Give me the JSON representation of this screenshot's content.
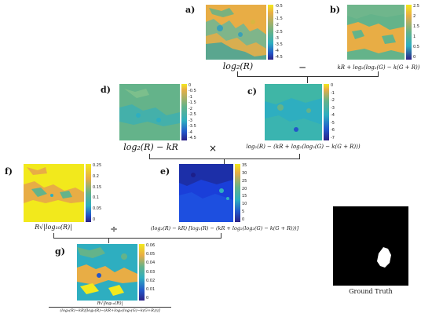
{
  "panels": {
    "a": {
      "letter": "a)",
      "expr": "log₂(R)",
      "ticks": [
        "-0.5",
        "-1",
        "-1.5",
        "-2",
        "-2.5",
        "-3",
        "-3.5",
        "-4",
        "-4.5"
      ]
    },
    "b": {
      "letter": "b)",
      "expr": "kR + log₂(log₂(G) − k(G + R))",
      "ticks": [
        "2.5",
        "2",
        "1.5",
        "1",
        "0.5",
        "0"
      ]
    },
    "d": {
      "letter": "d)",
      "expr": "log₂(R) − kR",
      "ticks": [
        "0",
        "-0.5",
        "-1",
        "-1.5",
        "-2",
        "-2.5",
        "-3",
        "-3.5",
        "-4",
        "-4.5"
      ]
    },
    "c": {
      "letter": "c)",
      "expr": "log₂(R) − (kR + log₂(log₂(G) − k(G + R)))",
      "ticks": [
        "0",
        "-1",
        "-2",
        "-3",
        "-4",
        "-5",
        "-6",
        "-7"
      ]
    },
    "f": {
      "letter": "f)",
      "expr": "R√|log₁₀(R)|",
      "ticks": [
        "0.25",
        "0.2",
        "0.15",
        "0.1",
        "0.05",
        "0"
      ]
    },
    "e": {
      "letter": "e)",
      "expr": "(log₂(R) − kR) [log₂(R) − (kR + log₂(log₂(G) − k(G + R)))]",
      "ticks": [
        "35",
        "30",
        "25",
        "20",
        "15",
        "10",
        "5",
        "0"
      ]
    },
    "g": {
      "letter": "g)",
      "expr_num": "R√|log₁₀(R)|",
      "expr_den": "(log₂(R)−kR)[log₂(R)−(kR+log₂(log₂(G)−k(G+R)))]",
      "ticks": [
        "0.06",
        "0.05",
        "0.04",
        "0.03",
        "0.02",
        "0.01",
        "0"
      ]
    }
  },
  "operators": {
    "minus": "−",
    "times": "×",
    "divide": "÷"
  },
  "ground_truth": {
    "label": "Ground Truth"
  },
  "colors": {
    "orange": "#e8ad45",
    "green": "#64b38a",
    "teal": "#2eaec0",
    "yellow": "#f2e91c",
    "blue": "#1a3fd9",
    "navy": "#1c1f8a"
  }
}
